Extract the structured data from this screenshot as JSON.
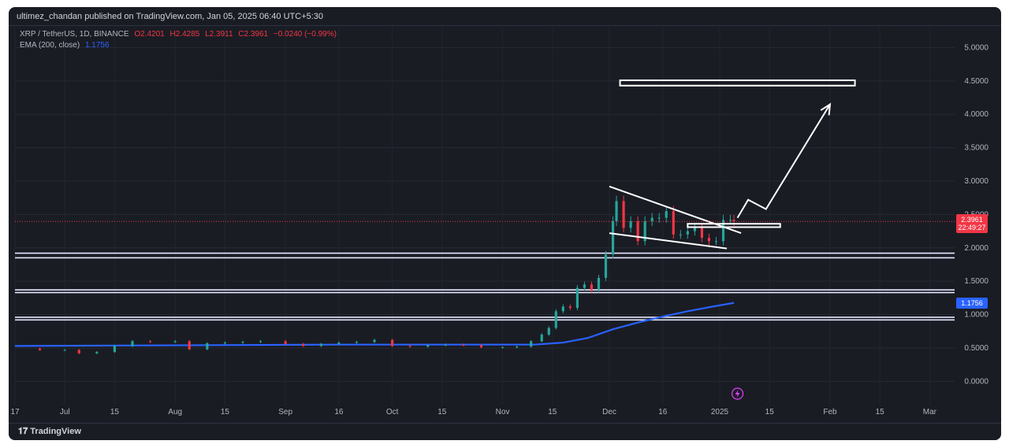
{
  "header": {
    "publish_line": "ultimez_chandan published on TradingView.com, Jan 05, 2025 06:40 UTC+5:30"
  },
  "legend": {
    "symbol": "XRP / TetherUS, 1D, BINANCE",
    "open": "O2.4201",
    "high": "H2.4285",
    "low": "L2.3911",
    "close": "C2.3961",
    "change": "−0.0240 (−0.99%)",
    "ema_label": "EMA (200, close)",
    "ema_value": "1.1756"
  },
  "price_tag": {
    "price": "2.3961",
    "countdown": "22:49:27",
    "color": "#f23645"
  },
  "ema_tag": {
    "value": "1.1756",
    "color": "#2962ff"
  },
  "footer": {
    "brand": "TradingView"
  },
  "chart_data": {
    "type": "candlestick",
    "title": "XRP / TetherUS, 1D, BINANCE",
    "y_axis": {
      "range": [
        -0.35,
        5.3
      ],
      "ticks": [
        "0.0000",
        "0.5000",
        "1.0000",
        "1.5000",
        "2.0000",
        "2.5000",
        "3.0000",
        "3.5000",
        "4.0000",
        "4.5000",
        "5.0000"
      ],
      "tick_values": [
        0,
        0.5,
        1,
        1.5,
        2,
        2.5,
        3,
        3.5,
        4,
        4.5,
        5
      ]
    },
    "x_axis": {
      "range": [
        "2024-06-17",
        "2025-03-08"
      ],
      "ticks": [
        {
          "label": "17",
          "date": "2024-06-17"
        },
        {
          "label": "Jul",
          "date": "2024-07-01"
        },
        {
          "label": "15",
          "date": "2024-07-15"
        },
        {
          "label": "Aug",
          "date": "2024-08-01"
        },
        {
          "label": "15",
          "date": "2024-08-15"
        },
        {
          "label": "Sep",
          "date": "2024-09-01"
        },
        {
          "label": "16",
          "date": "2024-09-16"
        },
        {
          "label": "Oct",
          "date": "2024-10-01"
        },
        {
          "label": "15",
          "date": "2024-10-15"
        },
        {
          "label": "Nov",
          "date": "2024-11-01"
        },
        {
          "label": "15",
          "date": "2024-11-15"
        },
        {
          "label": "Dec",
          "date": "2024-12-01"
        },
        {
          "label": "16",
          "date": "2024-12-16"
        },
        {
          "label": "2025",
          "date": "2025-01-01"
        },
        {
          "label": "15",
          "date": "2025-01-15"
        },
        {
          "label": "Feb",
          "date": "2025-02-01"
        },
        {
          "label": "15",
          "date": "2025-02-15"
        },
        {
          "label": "Mar",
          "date": "2025-03-01"
        }
      ]
    },
    "colors": {
      "up": "#26a69a",
      "down": "#f23645",
      "ema": "#2962ff",
      "annotation": "#ffffff"
    },
    "close_series": [
      {
        "date": "2024-06-17",
        "close": 0.49
      },
      {
        "date": "2024-06-24",
        "close": 0.47
      },
      {
        "date": "2024-07-01",
        "close": 0.47
      },
      {
        "date": "2024-07-05",
        "close": 0.42
      },
      {
        "date": "2024-07-10",
        "close": 0.44
      },
      {
        "date": "2024-07-15",
        "close": 0.53
      },
      {
        "date": "2024-07-20",
        "close": 0.6
      },
      {
        "date": "2024-07-25",
        "close": 0.59
      },
      {
        "date": "2024-08-01",
        "close": 0.6
      },
      {
        "date": "2024-08-05",
        "close": 0.48
      },
      {
        "date": "2024-08-10",
        "close": 0.57
      },
      {
        "date": "2024-08-15",
        "close": 0.58
      },
      {
        "date": "2024-08-20",
        "close": 0.59
      },
      {
        "date": "2024-08-25",
        "close": 0.6
      },
      {
        "date": "2024-09-01",
        "close": 0.56
      },
      {
        "date": "2024-09-06",
        "close": 0.53
      },
      {
        "date": "2024-09-11",
        "close": 0.56
      },
      {
        "date": "2024-09-16",
        "close": 0.58
      },
      {
        "date": "2024-09-21",
        "close": 0.59
      },
      {
        "date": "2024-09-26",
        "close": 0.62
      },
      {
        "date": "2024-10-01",
        "close": 0.53
      },
      {
        "date": "2024-10-06",
        "close": 0.52
      },
      {
        "date": "2024-10-11",
        "close": 0.54
      },
      {
        "date": "2024-10-16",
        "close": 0.55
      },
      {
        "date": "2024-10-21",
        "close": 0.54
      },
      {
        "date": "2024-10-26",
        "close": 0.51
      },
      {
        "date": "2024-11-01",
        "close": 0.51
      },
      {
        "date": "2024-11-05",
        "close": 0.52
      },
      {
        "date": "2024-11-09",
        "close": 0.6
      },
      {
        "date": "2024-11-12",
        "close": 0.7
      },
      {
        "date": "2024-11-14",
        "close": 0.8
      },
      {
        "date": "2024-11-16",
        "close": 1.05
      },
      {
        "date": "2024-11-18",
        "close": 1.12
      },
      {
        "date": "2024-11-20",
        "close": 1.1
      },
      {
        "date": "2024-11-22",
        "close": 1.4
      },
      {
        "date": "2024-11-24",
        "close": 1.45
      },
      {
        "date": "2024-11-26",
        "close": 1.37
      },
      {
        "date": "2024-11-28",
        "close": 1.55
      },
      {
        "date": "2024-11-30",
        "close": 1.9
      },
      {
        "date": "2024-12-02",
        "close": 2.4
      },
      {
        "date": "2024-12-03",
        "close": 2.7
      },
      {
        "date": "2024-12-05",
        "close": 2.3
      },
      {
        "date": "2024-12-07",
        "close": 2.4
      },
      {
        "date": "2024-12-09",
        "close": 2.1
      },
      {
        "date": "2024-12-11",
        "close": 2.4
      },
      {
        "date": "2024-12-13",
        "close": 2.45
      },
      {
        "date": "2024-12-15",
        "close": 2.45
      },
      {
        "date": "2024-12-17",
        "close": 2.55
      },
      {
        "date": "2024-12-19",
        "close": 2.2
      },
      {
        "date": "2024-12-21",
        "close": 2.2
      },
      {
        "date": "2024-12-23",
        "close": 2.25
      },
      {
        "date": "2024-12-25",
        "close": 2.3
      },
      {
        "date": "2024-12-27",
        "close": 2.15
      },
      {
        "date": "2024-12-29",
        "close": 2.1
      },
      {
        "date": "2024-12-31",
        "close": 2.1
      },
      {
        "date": "2025-01-02",
        "close": 2.42
      },
      {
        "date": "2025-01-04",
        "close": 2.42
      },
      {
        "date": "2025-01-05",
        "close": 2.3961
      }
    ],
    "ema_series": [
      {
        "date": "2024-06-17",
        "value": 0.53
      },
      {
        "date": "2024-08-01",
        "value": 0.54
      },
      {
        "date": "2024-09-16",
        "value": 0.55
      },
      {
        "date": "2024-10-15",
        "value": 0.55
      },
      {
        "date": "2024-11-10",
        "value": 0.55
      },
      {
        "date": "2024-11-18",
        "value": 0.58
      },
      {
        "date": "2024-11-25",
        "value": 0.65
      },
      {
        "date": "2024-12-02",
        "value": 0.78
      },
      {
        "date": "2024-12-09",
        "value": 0.88
      },
      {
        "date": "2024-12-16",
        "value": 0.97
      },
      {
        "date": "2024-12-23",
        "value": 1.05
      },
      {
        "date": "2024-12-30",
        "value": 1.12
      },
      {
        "date": "2025-01-05",
        "value": 1.1756
      }
    ],
    "support_lines": [
      1.85,
      1.92,
      1.33,
      1.37,
      0.92,
      0.96
    ],
    "annotations": {
      "target_box": {
        "date_start": "2024-12-04",
        "date_end": "2025-02-08",
        "y_low": 4.43,
        "y_high": 4.51
      },
      "breakout_box": {
        "date_start": "2024-12-23",
        "date_end": "2025-01-18",
        "y_low": 2.31,
        "y_high": 2.36
      },
      "wedge_upper": [
        {
          "date": "2024-12-01",
          "value": 2.92
        },
        {
          "date": "2025-01-07",
          "value": 2.22
        }
      ],
      "wedge_lower": [
        {
          "date": "2024-12-01",
          "value": 2.22
        },
        {
          "date": "2025-01-03",
          "value": 1.99
        }
      ],
      "path_arrow": [
        {
          "date": "2025-01-06",
          "value": 2.45
        },
        {
          "date": "2025-01-09",
          "value": 2.72
        },
        {
          "date": "2025-01-14",
          "value": 2.58
        },
        {
          "date": "2025-02-01",
          "value": 4.15
        }
      ]
    }
  }
}
